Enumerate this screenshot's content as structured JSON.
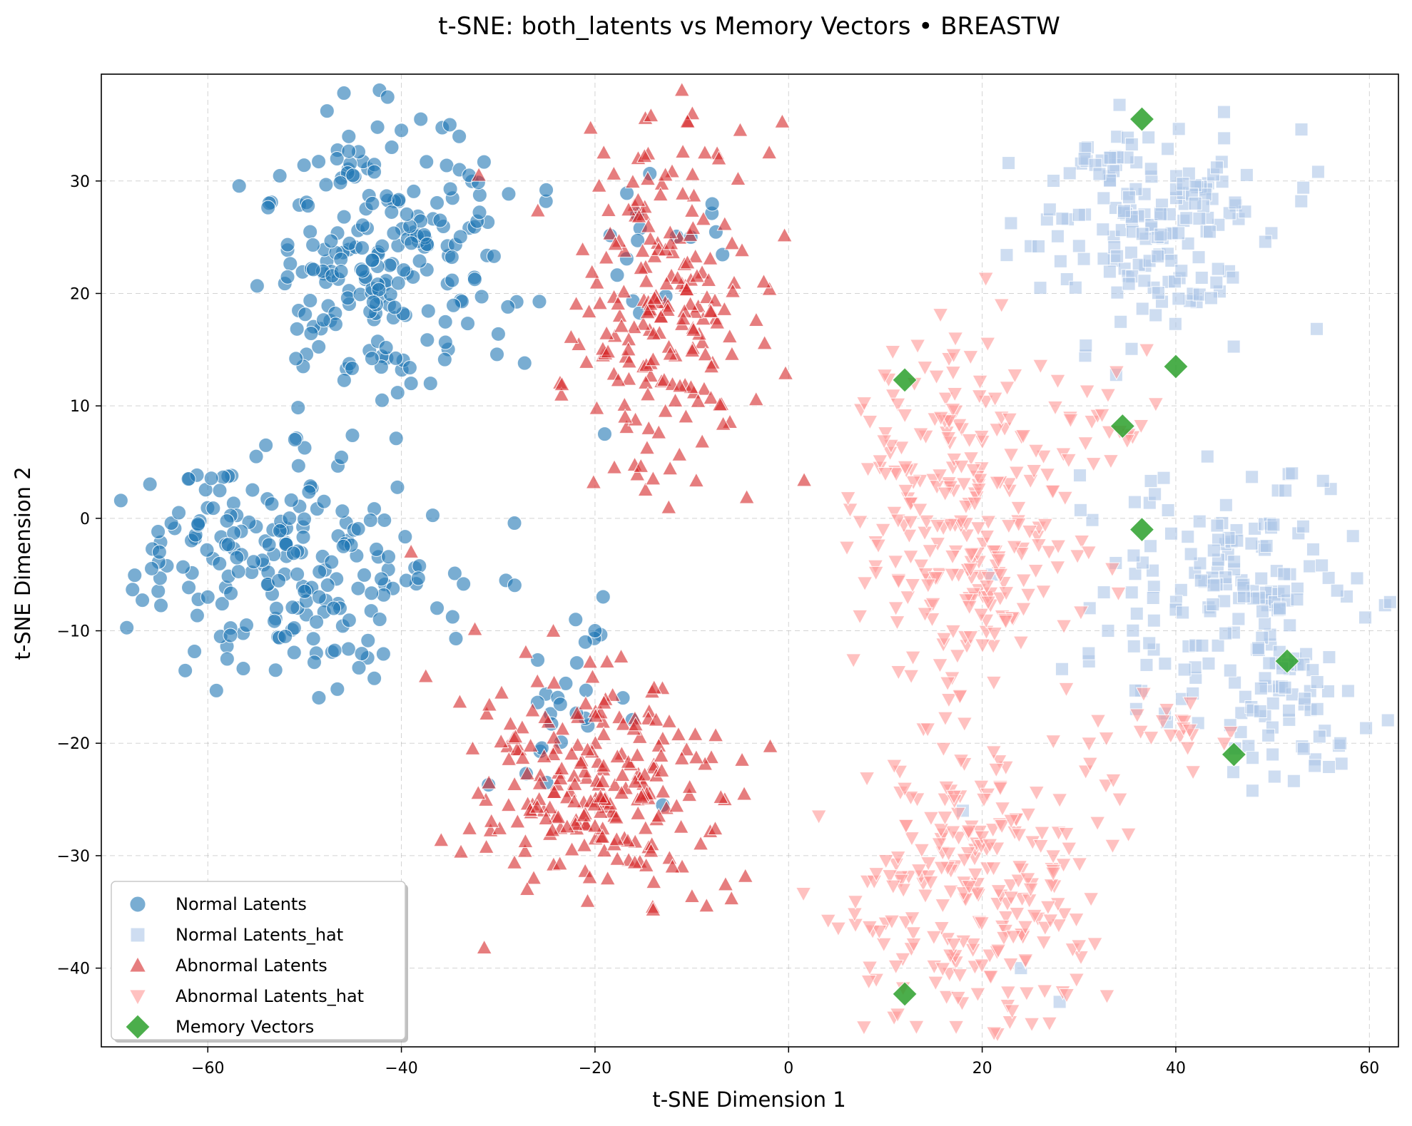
{
  "chart_data": {
    "type": "scatter",
    "title": "t-SNE: both_latents vs Memory Vectors • BREASTW",
    "xlabel": "t-SNE Dimension 1",
    "ylabel": "t-SNE Dimension 2",
    "xlim": [
      -71,
      63
    ],
    "ylim": [
      -47,
      39.5
    ],
    "xticks": [
      -60,
      -40,
      -20,
      0,
      20,
      40,
      60
    ],
    "yticks": [
      -40,
      -30,
      -20,
      -10,
      0,
      10,
      20,
      30
    ],
    "xtick_labels": [
      "−60",
      "−40",
      "−20",
      "0",
      "20",
      "40",
      "60"
    ],
    "ytick_labels": [
      "−40",
      "−30",
      "−20",
      "−10",
      "0",
      "10",
      "20",
      "30"
    ],
    "grid": true,
    "legend_position": "lower-left",
    "series": [
      {
        "name": "Normal Latents",
        "marker": "circle",
        "color": "#1f77b4",
        "clusters": [
          {
            "cx": -42,
            "cy": 23,
            "sx": 6,
            "sy": 6.5,
            "n": 210
          },
          {
            "cx": -52,
            "cy": -4,
            "sx": 8.5,
            "sy": 4.5,
            "n": 200
          },
          {
            "cx": -16,
            "cy": 24,
            "sx": 2,
            "sy": 4,
            "n": 12
          },
          {
            "cx": -22,
            "cy": -16,
            "sx": 3,
            "sy": 4,
            "n": 22
          },
          {
            "cx": -8,
            "cy": 27,
            "sx": 2,
            "sy": 1.5,
            "n": 5
          }
        ],
        "x": [
          -65,
          -63,
          -62,
          -61,
          -60,
          -58,
          -57,
          -56,
          -55,
          -54,
          -53,
          -52,
          -51,
          -50,
          -49,
          -48,
          -47,
          -46,
          -45,
          -44,
          -43,
          -42,
          -41,
          -40,
          -39,
          -38,
          -37,
          -36,
          -35,
          -34,
          -33,
          -29,
          -22,
          -21,
          -20,
          -19,
          -13,
          -25,
          -31
        ],
        "y": [
          -3,
          0.5,
          3.5,
          -0.5,
          -7,
          -12.5,
          -3.5,
          -9.5,
          5.5,
          6.5,
          -13.5,
          -10.5,
          7,
          -6.5,
          -12.8,
          1.5,
          -8,
          -2.5,
          30.5,
          22,
          28,
          10.5,
          33,
          34.5,
          12,
          35.5,
          12,
          26.5,
          35,
          31,
          30.5,
          18.8,
          -9,
          -11,
          -10,
          7.5,
          -25.5,
          -23.5,
          -23.7
        ]
      },
      {
        "name": "Normal Latents_hat",
        "marker": "square",
        "color": "#aec7e8",
        "clusters": [
          {
            "cx": 38,
            "cy": 25,
            "sx": 6,
            "sy": 4.5,
            "n": 150
          },
          {
            "cx": 46,
            "cy": -8,
            "sx": 7,
            "sy": 6,
            "n": 170
          },
          {
            "cx": 52,
            "cy": -18,
            "sx": 4,
            "sy": 3,
            "n": 40
          },
          {
            "cx": 34,
            "cy": 32,
            "sx": 2,
            "sy": 1.5,
            "n": 20
          }
        ],
        "x": [
          21,
          26,
          31,
          42,
          50,
          57,
          52,
          33,
          28,
          18,
          24
        ],
        "y": [
          -5,
          20.5,
          -12,
          28,
          -21,
          -20,
          4,
          -10,
          -43,
          -26,
          -40
        ]
      },
      {
        "name": "Abnormal Latents",
        "marker": "triangle-up",
        "color": "#d62728",
        "clusters": [
          {
            "cx": -12,
            "cy": 20,
            "sx": 5,
            "sy": 8,
            "n": 210
          },
          {
            "cx": -20,
            "cy": -24,
            "sx": 6,
            "sy": 5,
            "n": 230
          }
        ],
        "x": [
          -32,
          -39,
          -18,
          -5,
          -2,
          -14,
          -11,
          -27,
          -28,
          -12
        ],
        "y": [
          30.5,
          -3,
          4.5,
          34.5,
          32.5,
          3.5,
          -31,
          -33,
          -27,
          -31
        ]
      },
      {
        "name": "Abnormal Latents_hat",
        "marker": "triangle-down",
        "color": "#ff9896",
        "clusters": [
          {
            "cx": 18,
            "cy": 0,
            "sx": 5.5,
            "sy": 8,
            "n": 260
          },
          {
            "cx": 19,
            "cy": -33,
            "sx": 6,
            "sy": 6,
            "n": 240
          },
          {
            "cx": 32,
            "cy": 8,
            "sx": 3,
            "sy": 2,
            "n": 18
          },
          {
            "cx": 40,
            "cy": -19,
            "sx": 4,
            "sy": 2,
            "n": 20
          }
        ],
        "x": [
          10,
          13,
          22,
          24,
          37,
          31,
          28,
          33,
          45,
          30,
          12,
          17
        ],
        "y": [
          4,
          12,
          19,
          -11,
          15,
          -3,
          -25,
          11,
          -20,
          -38,
          -24,
          13
        ]
      },
      {
        "name": "Memory Vectors",
        "marker": "diamond",
        "color": "#2ca02c",
        "x": [
          36.5,
          12,
          40,
          34.5,
          36.5,
          51.5,
          46,
          12
        ],
        "y": [
          35.5,
          12.3,
          13.5,
          8.2,
          -1,
          -12.7,
          -21,
          -42.3
        ]
      }
    ]
  }
}
